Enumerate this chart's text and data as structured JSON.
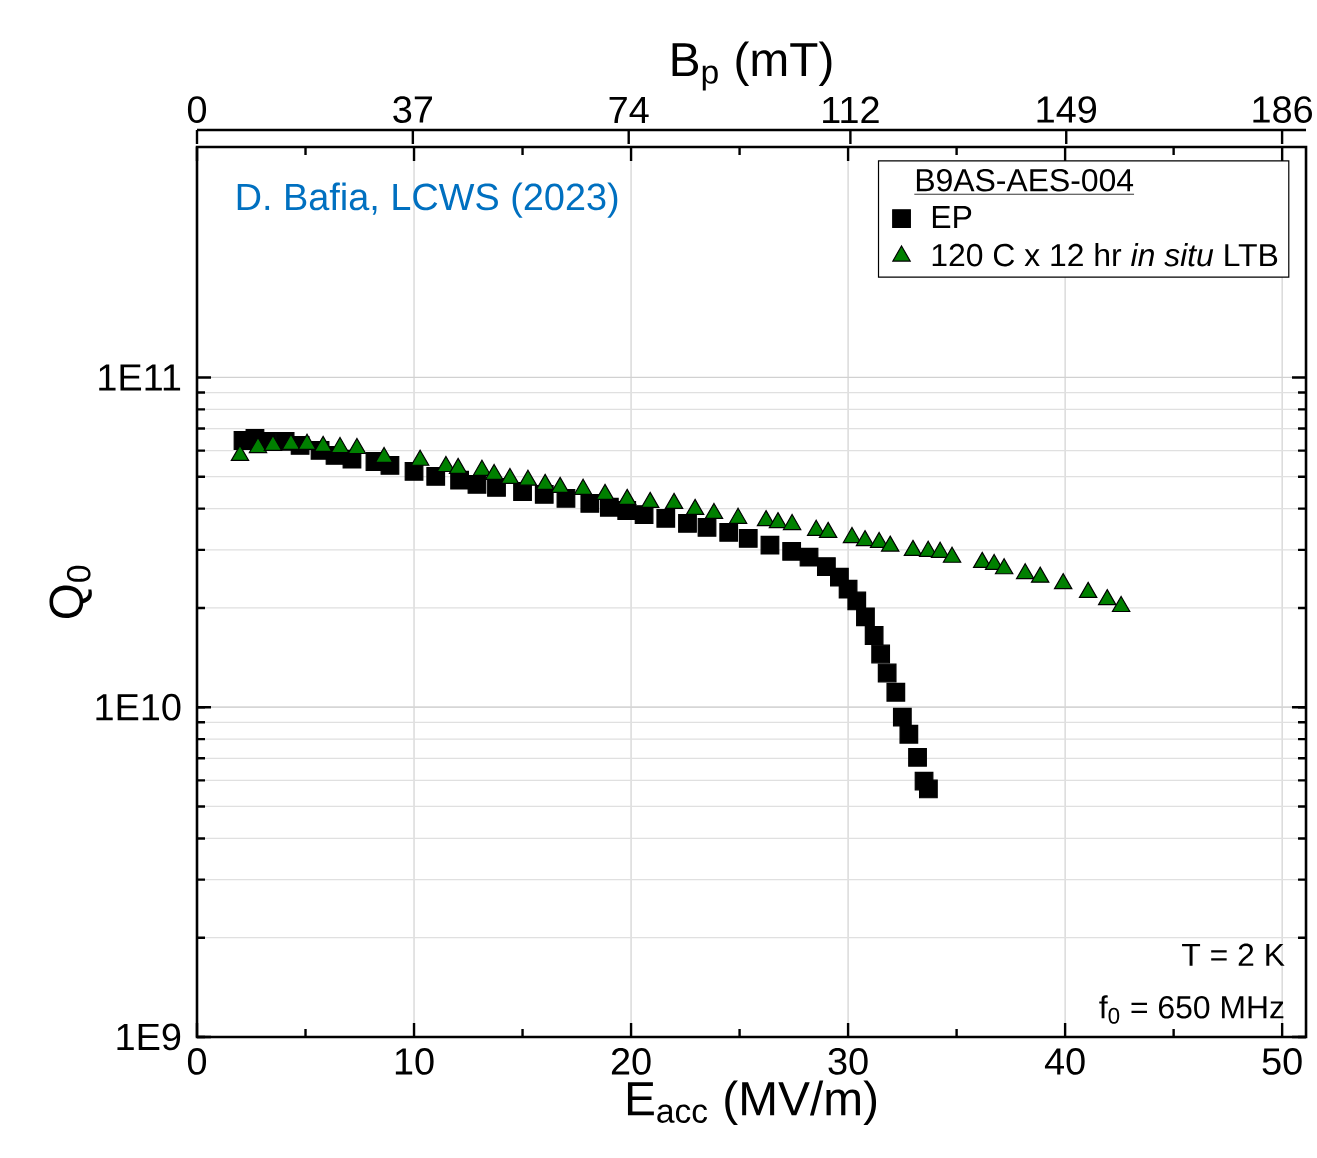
{
  "chart_data": {
    "type": "scatter",
    "xlabel": "E$_{acc}$ (MV/m)",
    "ylabel": "Q$_{0}$",
    "x2label": "B$_{p}$ (mT)",
    "xlim": [
      0,
      51.1
    ],
    "xticks": [
      0,
      10,
      20,
      30,
      40,
      50
    ],
    "x2lim": [
      0,
      190.1
    ],
    "x2ticks": [
      0,
      37,
      74,
      112,
      149,
      186
    ],
    "ylim": [
      1000000000.0,
      500000000000.0
    ],
    "yticks": [
      {
        "value": 1000000000.0,
        "label": "1E9"
      },
      {
        "value": 10000000000.0,
        "label": "1E10"
      },
      {
        "value": 100000000000.0,
        "label": "1E11"
      }
    ],
    "log": "y",
    "grid": true,
    "legend": "top right",
    "legend_title": "B9AS-AES-004",
    "annotations": [
      "D. Bafia, LCWS (2023)",
      "T = 2 K",
      "f$_{0}$ = 650 MHz"
    ],
    "series": [
      {
        "name": "EP",
        "color": "#000000",
        "marker": "square",
        "x": [
          2.12,
          2.67,
          3.23,
          4.06,
          4.75,
          5.67,
          6.36,
          7.14,
          8.2,
          8.89,
          10.0,
          11.0,
          12.1,
          12.9,
          13.8,
          15.0,
          16.0,
          17.0,
          18.1,
          19.0,
          19.8,
          20.6,
          21.6,
          22.6,
          23.5,
          24.5,
          25.4,
          26.4,
          27.4,
          28.2,
          29.0,
          29.6,
          30.0,
          30.4,
          30.8,
          31.2,
          31.5,
          31.8,
          32.2,
          32.5,
          32.8,
          33.2,
          33.5,
          33.7
        ],
        "values": [
          64400000000.0,
          65300000000.0,
          64000000000.0,
          64000000000.0,
          62200000000.0,
          60100000000.0,
          58000000000.0,
          56500000000.0,
          55600000000.0,
          54100000000.0,
          51900000000.0,
          50100000000.0,
          48800000000.0,
          47400000000.0,
          46400000000.0,
          45100000000.0,
          44200000000.0,
          43000000000.0,
          41500000000.0,
          40400000000.0,
          39500000000.0,
          38400000000.0,
          37400000000.0,
          36100000000.0,
          35100000000.0,
          33900000000.0,
          32500000000.0,
          31000000000.0,
          29700000000.0,
          28500000000.0,
          26700000000.0,
          24800000000.0,
          22800000000.0,
          21000000000.0,
          18800000000.0,
          16500000000.0,
          14500000000.0,
          12700000000.0,
          11100000000.0,
          9330000000.0,
          8280000000.0,
          7050000000.0,
          5970000000.0,
          5650000000.0
        ]
      },
      {
        "name": "120 C x 12 hr *in situ* LTB",
        "color": "#008000",
        "marker": "triangle",
        "x": [
          1.98,
          2.81,
          3.5,
          4.33,
          5.07,
          5.81,
          6.59,
          7.37,
          8.62,
          10.28,
          11.47,
          12.03,
          13.13,
          13.69,
          14.42,
          15.25,
          16.04,
          16.73,
          17.79,
          18.8,
          19.82,
          20.88,
          21.98,
          22.95,
          23.82,
          24.93,
          26.22,
          26.77,
          27.42,
          28.53,
          29.08,
          30.18,
          30.78,
          31.43,
          31.94,
          32.99,
          33.69,
          34.24,
          34.79,
          36.18,
          36.73,
          37.19,
          38.16,
          38.85,
          39.91,
          41.06,
          41.94,
          42.58
        ],
        "values": [
          58000000000.0,
          61300000000.0,
          62200000000.0,
          62700000000.0,
          62700000000.0,
          61800000000.0,
          61300000000.0,
          60900000000.0,
          57200000000.0,
          56100000000.0,
          53700000000.0,
          53000000000.0,
          52300000000.0,
          50800000000.0,
          49400000000.0,
          48800000000.0,
          47400000000.0,
          46400000000.0,
          45800000000.0,
          44200000000.0,
          42700000000.0,
          41800000000.0,
          41500000000.0,
          39800000000.0,
          38700000000.0,
          37400000000.0,
          36800000000.0,
          36300000000.0,
          35800000000.0,
          34400000000.0,
          33900000000.0,
          32700000000.0,
          32000000000.0,
          31600000000.0,
          30800000000.0,
          29900000000.0,
          29700000000.0,
          29500000000.0,
          28500000000.0,
          27500000000.0,
          27100000000.0,
          26300000000.0,
          25400000000.0,
          24800000000.0,
          23700000000.0,
          22300000000.0,
          21200000000.0,
          20200000000.0
        ]
      }
    ]
  }
}
